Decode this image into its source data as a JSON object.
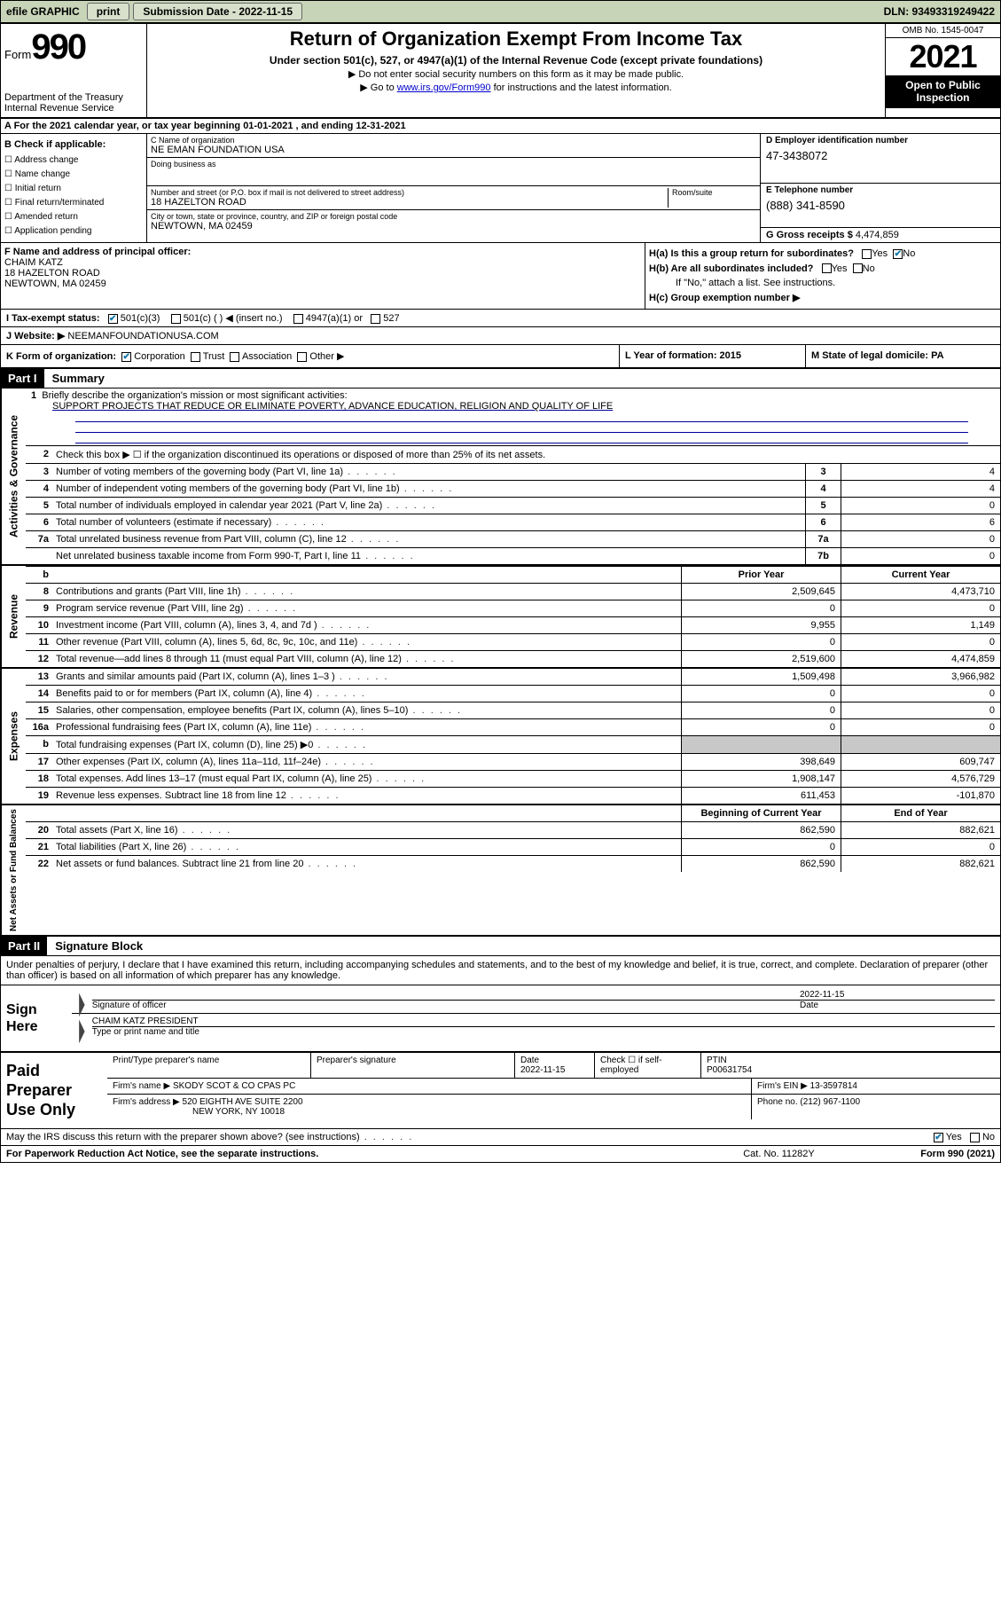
{
  "topbar": {
    "efile": "efile GRAPHIC",
    "print": "print",
    "sub_label": "Submission Date - 2022-11-15",
    "dln": "DLN: 93493319249422"
  },
  "header": {
    "form_word": "Form",
    "form_num": "990",
    "dept": "Department of the Treasury",
    "irs": "Internal Revenue Service",
    "title": "Return of Organization Exempt From Income Tax",
    "sub": "Under section 501(c), 527, or 4947(a)(1) of the Internal Revenue Code (except private foundations)",
    "note1": "▶ Do not enter social security numbers on this form as it may be made public.",
    "note2_pre": "▶ Go to ",
    "note2_link": "www.irs.gov/Form990",
    "note2_post": " for instructions and the latest information.",
    "omb": "OMB No. 1545-0047",
    "year": "2021",
    "open": "Open to Public Inspection"
  },
  "rowA": "A For the 2021 calendar year, or tax year beginning 01-01-2021   , and ending 12-31-2021",
  "boxB": {
    "label": "B Check if applicable:",
    "opts": [
      "Address change",
      "Name change",
      "Initial return",
      "Final return/terminated",
      "Amended return",
      "Application pending"
    ]
  },
  "boxC": {
    "name_lbl": "C Name of organization",
    "name": "NE EMAN FOUNDATION USA",
    "dba_lbl": "Doing business as",
    "dba": "",
    "addr_lbl": "Number and street (or P.O. box if mail is not delivered to street address)",
    "room_lbl": "Room/suite",
    "addr": "18 HAZELTON ROAD",
    "city_lbl": "City or town, state or province, country, and ZIP or foreign postal code",
    "city": "NEWTOWN, MA  02459"
  },
  "boxD": {
    "lbl": "D Employer identification number",
    "val": "47-3438072"
  },
  "boxE": {
    "lbl": "E Telephone number",
    "val": "(888) 341-8590"
  },
  "boxG": {
    "lbl": "G Gross receipts $",
    "val": "4,474,859"
  },
  "boxF": {
    "lbl": "F  Name and address of principal officer:",
    "name": "CHAIM KATZ",
    "addr1": "18 HAZELTON ROAD",
    "addr2": "NEWTOWN, MA  02459"
  },
  "boxH": {
    "a": "H(a)  Is this a group return for subordinates?",
    "b": "H(b)  Are all subordinates included?",
    "b_note": "If \"No,\" attach a list. See instructions.",
    "c": "H(c)  Group exemption number ▶",
    "yes": "Yes",
    "no": "No"
  },
  "rowI": {
    "lbl": "I   Tax-exempt status:",
    "o1": "501(c)(3)",
    "o2": "501(c) (  ) ◀ (insert no.)",
    "o3": "4947(a)(1) or",
    "o4": "527"
  },
  "rowJ": {
    "lbl": "J   Website: ▶",
    "val": "  NEEMANFOUNDATIONUSA.COM"
  },
  "rowK": {
    "lbl": "K Form of organization:",
    "o1": "Corporation",
    "o2": "Trust",
    "o3": "Association",
    "o4": "Other ▶"
  },
  "rowL": {
    "lbl": "L Year of formation: 2015"
  },
  "rowM": {
    "lbl": "M State of legal domicile: PA"
  },
  "part1": {
    "hdr": "Part I",
    "title": "Summary",
    "q1": "Briefly describe the organization's mission or most significant activities:",
    "mission": "SUPPORT PROJECTS THAT REDUCE OR ELIMINATE POVERTY, ADVANCE EDUCATION, RELIGION AND QUALITY OF LIFE",
    "q2": "Check this box ▶ ☐  if the organization discontinued its operations or disposed of more than 25% of its net assets.",
    "gov_rows": [
      {
        "n": "3",
        "d": "Number of voting members of the governing body (Part VI, line 1a)",
        "c": "3",
        "v": "4"
      },
      {
        "n": "4",
        "d": "Number of independent voting members of the governing body (Part VI, line 1b)",
        "c": "4",
        "v": "4"
      },
      {
        "n": "5",
        "d": "Total number of individuals employed in calendar year 2021 (Part V, line 2a)",
        "c": "5",
        "v": "0"
      },
      {
        "n": "6",
        "d": "Total number of volunteers (estimate if necessary)",
        "c": "6",
        "v": "6"
      },
      {
        "n": "7a",
        "d": "Total unrelated business revenue from Part VIII, column (C), line 12",
        "c": "7a",
        "v": "0"
      },
      {
        "n": "",
        "d": "Net unrelated business taxable income from Form 990-T, Part I, line 11",
        "c": "7b",
        "v": "0"
      }
    ],
    "two_col_hdr": {
      "p": "Prior Year",
      "c": "Current Year"
    },
    "rev_rows": [
      {
        "n": "8",
        "d": "Contributions and grants (Part VIII, line 1h)",
        "p": "2,509,645",
        "c": "4,473,710"
      },
      {
        "n": "9",
        "d": "Program service revenue (Part VIII, line 2g)",
        "p": "0",
        "c": "0"
      },
      {
        "n": "10",
        "d": "Investment income (Part VIII, column (A), lines 3, 4, and 7d )",
        "p": "9,955",
        "c": "1,149"
      },
      {
        "n": "11",
        "d": "Other revenue (Part VIII, column (A), lines 5, 6d, 8c, 9c, 10c, and 11e)",
        "p": "0",
        "c": "0"
      },
      {
        "n": "12",
        "d": "Total revenue—add lines 8 through 11 (must equal Part VIII, column (A), line 12)",
        "p": "2,519,600",
        "c": "4,474,859"
      }
    ],
    "exp_rows": [
      {
        "n": "13",
        "d": "Grants and similar amounts paid (Part IX, column (A), lines 1–3 )",
        "p": "1,509,498",
        "c": "3,966,982"
      },
      {
        "n": "14",
        "d": "Benefits paid to or for members (Part IX, column (A), line 4)",
        "p": "0",
        "c": "0"
      },
      {
        "n": "15",
        "d": "Salaries, other compensation, employee benefits (Part IX, column (A), lines 5–10)",
        "p": "0",
        "c": "0"
      },
      {
        "n": "16a",
        "d": "Professional fundraising fees (Part IX, column (A), line 11e)",
        "p": "0",
        "c": "0"
      },
      {
        "n": "b",
        "d": "Total fundraising expenses (Part IX, column (D), line 25) ▶0",
        "p": "gray",
        "c": "gray"
      },
      {
        "n": "17",
        "d": "Other expenses (Part IX, column (A), lines 11a–11d, 11f–24e)",
        "p": "398,649",
        "c": "609,747"
      },
      {
        "n": "18",
        "d": "Total expenses. Add lines 13–17 (must equal Part IX, column (A), line 25)",
        "p": "1,908,147",
        "c": "4,576,729"
      },
      {
        "n": "19",
        "d": "Revenue less expenses. Subtract line 18 from line 12",
        "p": "611,453",
        "c": "-101,870"
      }
    ],
    "net_hdr": {
      "p": "Beginning of Current Year",
      "c": "End of Year"
    },
    "net_rows": [
      {
        "n": "20",
        "d": "Total assets (Part X, line 16)",
        "p": "862,590",
        "c": "882,621"
      },
      {
        "n": "21",
        "d": "Total liabilities (Part X, line 26)",
        "p": "0",
        "c": "0"
      },
      {
        "n": "22",
        "d": "Net assets or fund balances. Subtract line 21 from line 20",
        "p": "862,590",
        "c": "882,621"
      }
    ]
  },
  "part2": {
    "hdr": "Part II",
    "title": "Signature Block",
    "note": "Under penalties of perjury, I declare that I have examined this return, including accompanying schedules and statements, and to the best of my knowledge and belief, it is true, correct, and complete. Declaration of preparer (other than officer) is based on all information of which preparer has any knowledge.",
    "sign_here": "Sign Here",
    "sig_officer": "Signature of officer",
    "date_lbl": "Date",
    "date_val": "2022-11-15",
    "officer": "CHAIM KATZ  PRESIDENT",
    "officer_lbl": "Type or print name and title",
    "paid": "Paid Preparer Use Only",
    "p_name_lbl": "Print/Type preparer's name",
    "p_sig_lbl": "Preparer's signature",
    "p_date_lbl": "Date",
    "p_date": "2022-11-15",
    "p_check": "Check ☐ if self-employed",
    "ptin_lbl": "PTIN",
    "ptin": "P00631754",
    "firm_name_lbl": "Firm's name    ▶",
    "firm_name": "SKODY SCOT & CO CPAS PC",
    "firm_ein_lbl": "Firm's EIN ▶",
    "firm_ein": "13-3597814",
    "firm_addr_lbl": "Firm's address ▶",
    "firm_addr1": "520 EIGHTH AVE SUITE 2200",
    "firm_addr2": "NEW YORK, NY  10018",
    "phone_lbl": "Phone no.",
    "phone": "(212) 967-1100",
    "discuss": "May the IRS discuss this return with the preparer shown above? (see instructions)",
    "yes": "Yes",
    "no": "No"
  },
  "footer": {
    "pra": "For Paperwork Reduction Act Notice, see the separate instructions.",
    "cat": "Cat. No. 11282Y",
    "form": "Form 990 (2021)"
  },
  "side_labels": {
    "gov": "Activities & Governance",
    "rev": "Revenue",
    "exp": "Expenses",
    "net": "Net Assets or Fund Balances"
  }
}
